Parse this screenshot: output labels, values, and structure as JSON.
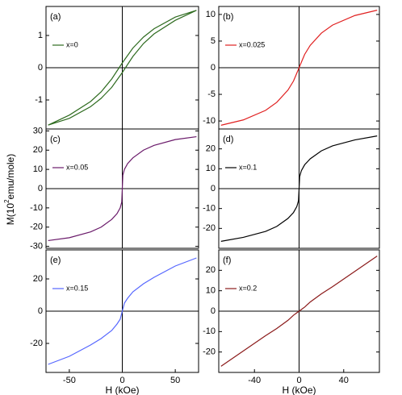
{
  "ylabel": "M(10",
  "ylabel_sup": "2",
  "ylabel_unit": "emu/mole)",
  "chart_data": [
    {
      "type": "line",
      "label": "(a)",
      "xlim": [
        -72,
        72
      ],
      "ylim": [
        -1.9,
        1.9
      ],
      "yticks": [
        -1,
        0,
        1
      ],
      "x": [
        70,
        50,
        30,
        20,
        10,
        0,
        -10,
        -20,
        -30,
        -50,
        -70,
        -50,
        -30,
        -20,
        -10,
        0,
        10,
        20,
        30,
        50,
        70
      ],
      "series": [
        {
          "name": "x=0",
          "color": "#2e6b1f",
          "values": [
            1.78,
            1.57,
            1.21,
            0.95,
            0.61,
            0.15,
            -0.35,
            -0.75,
            -1.05,
            -1.47,
            -1.78,
            -1.57,
            -1.21,
            -0.95,
            -0.61,
            -0.15,
            0.35,
            0.75,
            1.05,
            1.47,
            1.78
          ]
        }
      ]
    },
    {
      "type": "line",
      "label": "(b)",
      "xlim": [
        -72,
        72
      ],
      "ylim": [
        -11.5,
        11.5
      ],
      "yticks": [
        -10,
        -5,
        0,
        5,
        10
      ],
      "x": [
        -70,
        -50,
        -30,
        -20,
        -10,
        -5,
        -2,
        0,
        2,
        5,
        10,
        20,
        30,
        50,
        70
      ],
      "series": [
        {
          "name": "x=0.025",
          "color": "#e02020",
          "values": [
            -10.8,
            -9.8,
            -8.0,
            -6.5,
            -4.2,
            -2.5,
            -1.0,
            0,
            1.0,
            2.5,
            4.2,
            6.5,
            8.0,
            9.8,
            10.8
          ]
        }
      ]
    },
    {
      "type": "line",
      "label": "(c)",
      "xlim": [
        -72,
        72
      ],
      "ylim": [
        -31,
        31
      ],
      "yticks": [
        -30,
        -20,
        -10,
        0,
        10,
        20,
        30
      ],
      "x": [
        -70,
        -50,
        -30,
        -20,
        -10,
        -5,
        -2,
        -0.5,
        0,
        0.5,
        2,
        5,
        10,
        20,
        30,
        50,
        70
      ],
      "series": [
        {
          "name": "x=0.05",
          "color": "#6a1a6a",
          "values": [
            -27,
            -25.5,
            -22.5,
            -20,
            -16,
            -13,
            -10,
            -7,
            0,
            7,
            10,
            13,
            16,
            20,
            22.5,
            25.5,
            27
          ]
        }
      ]
    },
    {
      "type": "line",
      "label": "(d)",
      "xlim": [
        -72,
        72
      ],
      "ylim": [
        -30,
        30
      ],
      "yticks": [
        -20,
        -10,
        0,
        10,
        20
      ],
      "x": [
        -70,
        -50,
        -30,
        -20,
        -10,
        -5,
        -2,
        -0.5,
        0,
        0.5,
        2,
        5,
        10,
        20,
        30,
        50,
        70
      ],
      "series": [
        {
          "name": "x=0.1",
          "color": "#000000",
          "values": [
            -26.5,
            -24.5,
            -21.5,
            -19,
            -15,
            -12,
            -9,
            -6,
            0,
            6,
            9,
            12,
            15,
            19,
            21.5,
            24.5,
            26.5
          ]
        }
      ]
    },
    {
      "type": "line",
      "label": "(e)",
      "xlabel": "H (kOe)",
      "xlim": [
        -72,
        72
      ],
      "ylim": [
        -38,
        38
      ],
      "yticks": [
        -20,
        0,
        20
      ],
      "xticks": [
        -50,
        0,
        50
      ],
      "x": [
        -70,
        -50,
        -30,
        -20,
        -10,
        -5,
        -2,
        0,
        2,
        5,
        10,
        20,
        30,
        50,
        70
      ],
      "series": [
        {
          "name": "x=0.15",
          "color": "#5566ff",
          "values": [
            -33,
            -28,
            -21,
            -17,
            -12,
            -8,
            -5,
            0,
            5,
            8,
            12,
            17,
            21,
            28,
            33
          ]
        }
      ]
    },
    {
      "type": "line",
      "label": "(f)",
      "xlabel": "H (kOe)",
      "xlim": [
        -72,
        72
      ],
      "ylim": [
        -30,
        30
      ],
      "yticks": [
        -20,
        -10,
        0,
        10,
        20
      ],
      "xticks": [
        -40,
        0,
        40
      ],
      "x": [
        -70,
        -50,
        -30,
        -20,
        -10,
        -5,
        -2,
        0,
        2,
        5,
        10,
        20,
        30,
        50,
        70
      ],
      "series": [
        {
          "name": "x=0.2",
          "color": "#8b1a1a",
          "values": [
            -27,
            -19.5,
            -12,
            -8.5,
            -4.5,
            -2,
            -0.8,
            0,
            0.8,
            2,
            4.5,
            8.5,
            12,
            19.5,
            27
          ]
        }
      ]
    }
  ]
}
